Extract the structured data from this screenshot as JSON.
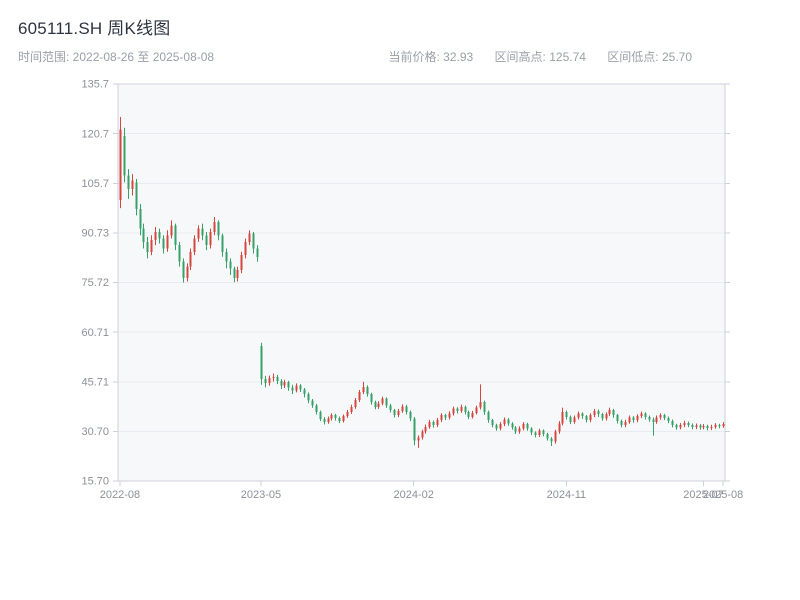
{
  "header": {
    "title": "605111.SH 周K线图",
    "time_range": "时间范围: 2022-08-26 至 2025-08-08",
    "stats": [
      {
        "label": "当前价格:",
        "value": "32.93"
      },
      {
        "label": "区间高点:",
        "value": "125.74"
      },
      {
        "label": "区间低点:",
        "value": "25.70"
      }
    ]
  },
  "chart_data": {
    "type": "candlestick",
    "title": "605111.SH 周K线图",
    "period": "weekly",
    "date_range": {
      "start": "2022-08-26",
      "end": "2025-08-08"
    },
    "current_price": 32.93,
    "range_high": 125.74,
    "range_low": 25.7,
    "xlabel": "",
    "ylabel": "",
    "grid": true,
    "legend": "none",
    "ylim": [
      15.7,
      135.73
    ],
    "yticks": [
      "135.7",
      "120.7",
      "105.7",
      "90.73",
      "75.72",
      "60.71",
      "45.71",
      "30.70",
      "15.70"
    ],
    "xticks": [
      {
        "label": "2022-08",
        "index": 0
      },
      {
        "label": "2023-05",
        "index": 36
      },
      {
        "label": "2024-02",
        "index": 75
      },
      {
        "label": "2024-11",
        "index": 114
      },
      {
        "label": "2025-07",
        "index": 149
      },
      {
        "label": "2025-08",
        "index": 154
      }
    ],
    "colors": {
      "up": "#d5463d",
      "down": "#38a169",
      "grid": "#e9ebf0",
      "axis": "#ccd0d9",
      "plot_bg": "#f7f8fa",
      "label": "#8c909a"
    },
    "ohlc_format": [
      "open",
      "close",
      "low",
      "high"
    ],
    "candles": [
      [
        100.6,
        121.9,
        98.2,
        125.74
      ],
      [
        120.0,
        108.0,
        106.0,
        122.5
      ],
      [
        108.0,
        104.0,
        101.0,
        110.0
      ],
      [
        104.0,
        106.5,
        102.0,
        108.5
      ],
      [
        106.0,
        98.0,
        96.0,
        107.0
      ],
      [
        98.0,
        92.0,
        90.0,
        99.5
      ],
      [
        92.0,
        88.0,
        86.0,
        93.5
      ],
      [
        88.0,
        85.0,
        83.0,
        89.5
      ],
      [
        85.0,
        88.5,
        84.0,
        90.0
      ],
      [
        88.5,
        91.0,
        87.0,
        92.5
      ],
      [
        91.0,
        89.0,
        87.5,
        92.0
      ],
      [
        89.0,
        86.0,
        84.5,
        90.0
      ],
      [
        86.0,
        90.0,
        85.0,
        91.5
      ],
      [
        90.0,
        93.0,
        89.0,
        94.5
      ],
      [
        93.0,
        87.0,
        85.5,
        93.5
      ],
      [
        87.0,
        82.0,
        80.5,
        88.0
      ],
      [
        82.0,
        77.0,
        75.72,
        83.0
      ],
      [
        77.0,
        80.5,
        76.0,
        81.5
      ],
      [
        80.5,
        85.0,
        79.5,
        86.0
      ],
      [
        85.0,
        89.0,
        84.0,
        90.0
      ],
      [
        89.0,
        92.0,
        88.0,
        93.0
      ],
      [
        92.0,
        90.0,
        88.5,
        93.5
      ],
      [
        90.0,
        87.0,
        85.5,
        91.0
      ],
      [
        87.0,
        91.0,
        86.0,
        92.0
      ],
      [
        91.0,
        94.0,
        90.0,
        95.5
      ],
      [
        94.0,
        90.0,
        88.5,
        94.5
      ],
      [
        90.0,
        85.0,
        83.5,
        90.5
      ],
      [
        85.0,
        82.0,
        80.0,
        86.0
      ],
      [
        82.0,
        80.0,
        78.0,
        83.0
      ],
      [
        80.0,
        77.0,
        75.8,
        80.5
      ],
      [
        77.0,
        79.5,
        76.0,
        80.5
      ],
      [
        79.5,
        84.0,
        78.5,
        85.0
      ],
      [
        84.0,
        88.0,
        83.0,
        89.0
      ],
      [
        88.0,
        90.5,
        87.0,
        91.5
      ],
      [
        90.5,
        86.0,
        84.5,
        91.0
      ],
      [
        86.0,
        83.5,
        82.0,
        87.0
      ],
      [
        56.5,
        46.5,
        44.8,
        57.5
      ],
      [
        46.5,
        45.3,
        44.0,
        47.5
      ],
      [
        45.3,
        46.8,
        44.5,
        47.6
      ],
      [
        46.8,
        47.2,
        45.8,
        48.2
      ],
      [
        47.2,
        46.0,
        45.0,
        47.8
      ],
      [
        46.0,
        44.5,
        43.5,
        46.5
      ],
      [
        44.5,
        45.6,
        43.8,
        46.3
      ],
      [
        45.6,
        44.0,
        43.0,
        46.0
      ],
      [
        44.0,
        43.0,
        42.0,
        44.8
      ],
      [
        43.0,
        44.6,
        42.5,
        45.2
      ],
      [
        44.6,
        43.4,
        42.6,
        45.0
      ],
      [
        43.4,
        42.0,
        41.0,
        43.8
      ],
      [
        42.0,
        40.0,
        39.2,
        42.5
      ],
      [
        40.0,
        38.5,
        37.8,
        40.5
      ],
      [
        38.5,
        36.5,
        35.8,
        39.0
      ],
      [
        36.5,
        34.5,
        33.8,
        37.0
      ],
      [
        34.5,
        33.6,
        32.8,
        35.0
      ],
      [
        33.6,
        34.6,
        33.0,
        35.2
      ],
      [
        34.6,
        35.6,
        34.0,
        36.2
      ],
      [
        35.6,
        34.8,
        34.0,
        36.0
      ],
      [
        34.8,
        33.9,
        33.2,
        35.2
      ],
      [
        33.9,
        35.3,
        33.4,
        35.8
      ],
      [
        35.3,
        36.6,
        34.8,
        37.2
      ],
      [
        36.6,
        38.1,
        36.0,
        38.8
      ],
      [
        38.1,
        40.2,
        37.5,
        40.8
      ],
      [
        40.2,
        42.6,
        39.6,
        43.2
      ],
      [
        42.6,
        44.1,
        42.0,
        45.7
      ],
      [
        44.1,
        42.0,
        41.2,
        44.6
      ],
      [
        42.0,
        39.6,
        38.8,
        42.4
      ],
      [
        39.6,
        38.1,
        37.4,
        40.0
      ],
      [
        38.1,
        39.1,
        37.5,
        39.8
      ],
      [
        39.1,
        40.6,
        38.6,
        41.2
      ],
      [
        40.6,
        38.6,
        37.8,
        41.0
      ],
      [
        38.6,
        37.1,
        36.4,
        39.0
      ],
      [
        37.1,
        35.6,
        34.9,
        37.5
      ],
      [
        35.6,
        36.9,
        35.0,
        37.5
      ],
      [
        36.9,
        38.3,
        36.3,
        38.9
      ],
      [
        38.3,
        36.6,
        35.8,
        38.7
      ],
      [
        36.6,
        34.6,
        33.8,
        37.0
      ],
      [
        34.6,
        28.0,
        26.5,
        35.0
      ],
      [
        28.0,
        28.8,
        25.7,
        29.5
      ],
      [
        28.8,
        30.6,
        28.2,
        31.2
      ],
      [
        30.6,
        32.1,
        30.0,
        32.8
      ],
      [
        32.1,
        33.6,
        31.5,
        34.2
      ],
      [
        33.6,
        32.6,
        31.8,
        34.0
      ],
      [
        32.6,
        34.1,
        32.0,
        34.8
      ],
      [
        34.1,
        35.6,
        33.5,
        36.2
      ],
      [
        35.6,
        34.9,
        34.1,
        36.0
      ],
      [
        34.9,
        36.1,
        34.3,
        36.8
      ],
      [
        36.1,
        37.6,
        35.5,
        38.2
      ],
      [
        37.6,
        36.9,
        36.1,
        38.0
      ],
      [
        36.9,
        38.1,
        36.3,
        38.8
      ],
      [
        38.1,
        36.6,
        35.8,
        38.5
      ],
      [
        36.6,
        35.1,
        34.4,
        37.0
      ],
      [
        35.1,
        36.3,
        34.6,
        36.9
      ],
      [
        36.3,
        37.9,
        35.8,
        38.5
      ],
      [
        37.9,
        39.6,
        37.3,
        44.9
      ],
      [
        39.6,
        36.6,
        35.7,
        40.0
      ],
      [
        36.6,
        34.1,
        33.3,
        37.0
      ],
      [
        34.1,
        32.6,
        31.9,
        34.5
      ],
      [
        32.6,
        31.6,
        30.9,
        33.0
      ],
      [
        31.6,
        32.9,
        31.0,
        33.5
      ],
      [
        32.9,
        34.3,
        32.3,
        34.9
      ],
      [
        34.3,
        33.1,
        32.4,
        34.7
      ],
      [
        33.1,
        31.9,
        31.2,
        33.5
      ],
      [
        31.9,
        30.6,
        29.9,
        32.3
      ],
      [
        30.6,
        31.6,
        30.0,
        32.2
      ],
      [
        31.6,
        32.9,
        31.0,
        33.5
      ],
      [
        32.9,
        31.6,
        30.9,
        33.3
      ],
      [
        31.6,
        30.3,
        29.6,
        32.0
      ],
      [
        30.3,
        29.6,
        28.9,
        30.7
      ],
      [
        29.6,
        30.9,
        29.0,
        31.5
      ],
      [
        30.9,
        29.9,
        29.2,
        31.3
      ],
      [
        29.9,
        28.6,
        27.9,
        30.3
      ],
      [
        28.6,
        27.6,
        26.3,
        29.0
      ],
      [
        27.6,
        30.6,
        27.0,
        31.2
      ],
      [
        30.6,
        33.1,
        30.0,
        33.8
      ],
      [
        33.1,
        36.6,
        32.5,
        37.9
      ],
      [
        36.6,
        35.1,
        34.3,
        37.0
      ],
      [
        35.1,
        33.6,
        32.9,
        35.5
      ],
      [
        33.6,
        34.9,
        33.0,
        35.5
      ],
      [
        34.9,
        36.1,
        34.3,
        36.7
      ],
      [
        36.1,
        35.3,
        34.5,
        36.5
      ],
      [
        35.3,
        34.1,
        33.4,
        35.7
      ],
      [
        34.1,
        35.6,
        33.5,
        36.2
      ],
      [
        35.6,
        36.9,
        35.0,
        37.5
      ],
      [
        36.9,
        35.9,
        35.1,
        37.3
      ],
      [
        35.9,
        34.6,
        33.9,
        36.3
      ],
      [
        34.6,
        35.9,
        34.0,
        36.5
      ],
      [
        35.9,
        37.1,
        35.3,
        37.9
      ],
      [
        37.1,
        35.6,
        34.8,
        37.5
      ],
      [
        35.6,
        33.9,
        33.1,
        36.0
      ],
      [
        33.9,
        32.6,
        31.9,
        34.3
      ],
      [
        32.6,
        33.6,
        32.0,
        34.2
      ],
      [
        33.6,
        34.9,
        33.0,
        35.5
      ],
      [
        34.9,
        34.1,
        33.3,
        35.3
      ],
      [
        34.1,
        35.3,
        33.5,
        35.9
      ],
      [
        35.3,
        36.1,
        34.7,
        36.7
      ],
      [
        36.1,
        35.1,
        34.3,
        36.5
      ],
      [
        35.1,
        34.3,
        33.6,
        35.5
      ],
      [
        34.3,
        33.6,
        29.4,
        34.9
      ],
      [
        33.6,
        34.9,
        33.0,
        35.5
      ],
      [
        34.9,
        35.7,
        34.2,
        36.2
      ],
      [
        35.7,
        34.8,
        34.1,
        36.0
      ],
      [
        34.8,
        33.9,
        33.2,
        35.2
      ],
      [
        33.9,
        32.6,
        31.9,
        34.3
      ],
      [
        32.6,
        31.9,
        31.2,
        33.0
      ],
      [
        31.9,
        32.6,
        31.3,
        33.2
      ],
      [
        32.6,
        33.3,
        32.0,
        33.9
      ],
      [
        33.3,
        32.7,
        32.0,
        33.7
      ],
      [
        32.7,
        32.0,
        31.3,
        33.1
      ],
      [
        32.0,
        32.5,
        31.4,
        33.1
      ],
      [
        32.5,
        31.9,
        31.2,
        32.9
      ],
      [
        31.9,
        32.3,
        31.3,
        32.9
      ],
      [
        32.3,
        31.7,
        31.0,
        32.7
      ],
      [
        31.7,
        32.1,
        31.1,
        32.7
      ],
      [
        32.1,
        32.6,
        31.5,
        33.2
      ],
      [
        32.6,
        32.3,
        31.6,
        33.0
      ],
      [
        32.3,
        32.93,
        31.8,
        33.5
      ]
    ]
  }
}
